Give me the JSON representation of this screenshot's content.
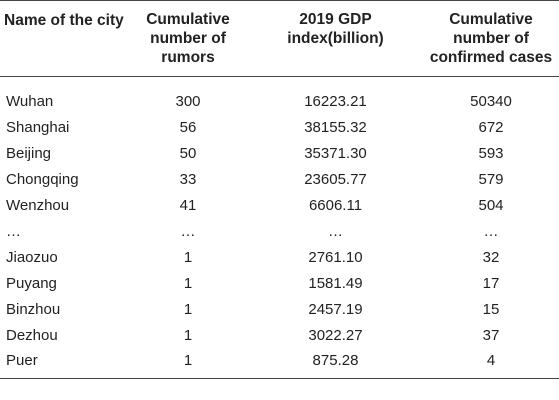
{
  "table": {
    "headers": [
      "Name of the city",
      "Cumulative number of rumors",
      "2019 GDP index(billion)",
      "Cumulative number of confirmed cases"
    ],
    "rows": [
      [
        "Wuhan",
        "300",
        "16223.21",
        "50340"
      ],
      [
        "Shanghai",
        "56",
        "38155.32",
        "672"
      ],
      [
        "Beijing",
        "50",
        "35371.30",
        "593"
      ],
      [
        "Chongqing",
        "33",
        "23605.77",
        "579"
      ],
      [
        "Wenzhou",
        "41",
        "6606.11",
        "504"
      ],
      [
        "…",
        "…",
        "…",
        "…"
      ],
      [
        "Jiaozuo",
        "1",
        "2761.10",
        "32"
      ],
      [
        "Puyang",
        "1",
        "1581.49",
        "17"
      ],
      [
        "Binzhou",
        "1",
        "2457.19",
        "15"
      ],
      [
        "Dezhou",
        "1",
        "3022.27",
        "37"
      ],
      [
        "Puer",
        "1",
        "875.28",
        "4"
      ]
    ]
  }
}
